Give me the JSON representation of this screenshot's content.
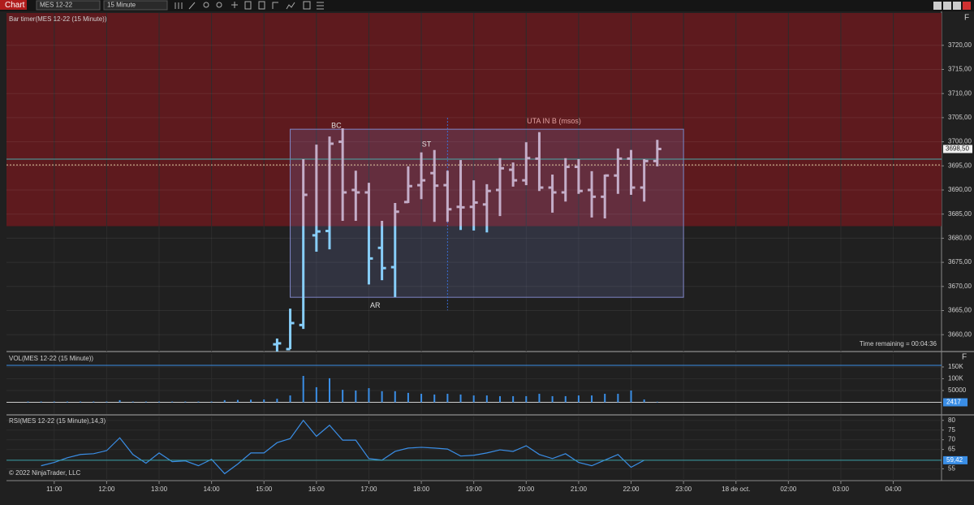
{
  "toolbar": {
    "title": "Chart",
    "instrument": "MES 12-22",
    "interval": "15 Minute"
  },
  "chart_data": [
    {
      "type": "ohlc",
      "title": "Bar timer(MES 12-22 (15 Minute))",
      "footer": "Time remaining = 00:04:36",
      "x": [
        15.25,
        15.5,
        15.75,
        16,
        16.25,
        16.5,
        16.75,
        17,
        17.25,
        17.5,
        17.75,
        18,
        18.25,
        18.5,
        18.75,
        19,
        19.25,
        19.5,
        19.75,
        20,
        20.25,
        20.5,
        20.75,
        21,
        21.25,
        21.5,
        21.75,
        22,
        22.25,
        22.5
      ],
      "open": [
        3658,
        3657,
        3662,
        3680.6,
        3681.5,
        3700,
        3690,
        3689.5,
        3678,
        3674,
        3687.5,
        3691,
        3693.5,
        3691,
        3686.5,
        3686.5,
        3687,
        3690,
        3694.2,
        3692,
        3696.5,
        3690.5,
        3689.5,
        3694.8,
        3690,
        3688.6,
        3693,
        3696.5,
        3690.5,
        3696
      ],
      "high": [
        3659.2,
        3665.4,
        3696.4,
        3699.4,
        3701.1,
        3702.8,
        3694,
        3691.5,
        3683.6,
        3687.3,
        3694.9,
        3697.8,
        3698.3,
        3694,
        3696.2,
        3692,
        3691.2,
        3696.6,
        3695.7,
        3699.9,
        3702,
        3693.2,
        3696.6,
        3696.4,
        3693.9,
        3693.2,
        3698.6,
        3698.3,
        3696.4,
        3700.4
      ],
      "low": [
        3655.5,
        3657,
        3661.2,
        3677.2,
        3677.7,
        3683.6,
        3683.6,
        3670.4,
        3671.3,
        3667.8,
        3687.3,
        3688.1,
        3683.4,
        3683.4,
        3681.7,
        3681.6,
        3681.2,
        3684.6,
        3690.7,
        3691,
        3689.8,
        3685.3,
        3687.6,
        3689.2,
        3684.3,
        3684.1,
        3689.2,
        3689,
        3687.6,
        3694.9
      ],
      "close": [
        3658.2,
        3662.4,
        3689,
        3681.4,
        3699.6,
        3689.5,
        3689.5,
        3675.8,
        3673.8,
        3685.5,
        3690.8,
        3692,
        3690.9,
        3686,
        3686.4,
        3687.4,
        3689.8,
        3694.5,
        3692,
        3696.6,
        3690.5,
        3689.5,
        3694.8,
        3689.8,
        3688.6,
        3693,
        3696.5,
        3690.5,
        3696,
        3698.5
      ],
      "color": "#87cefa",
      "zone_color": "#5e1a1e",
      "zone_bar_color": "#c4adc8",
      "zone_from": 3682.5,
      "box": {
        "x": [
          15.5,
          23.0
        ],
        "y": [
          3667.75,
          3702.6
        ]
      },
      "vline": 18.5,
      "reference_lines": [
        3696.4,
        3695.2
      ],
      "annotations": [
        {
          "text": "BC",
          "x": 16.38,
          "y": 3703.3
        },
        {
          "text": "ST",
          "x": 18.1,
          "y": 3699.4
        },
        {
          "text": "AR",
          "x": 17.12,
          "y": 3666
        },
        {
          "text": "UTA IN B (msos)",
          "x": 20.53,
          "y": 3704.2
        }
      ],
      "last_price": {
        "value": 3698.5,
        "label": "3698,50"
      },
      "xlim": [
        10.09,
        27.92
      ],
      "ylim": [
        3656.5,
        3726.7
      ],
      "yticks": [
        {
          "value": 3660,
          "label": "3660,00"
        },
        {
          "value": 3665,
          "label": "3665,00"
        },
        {
          "value": 3670,
          "label": "3670,00"
        },
        {
          "value": 3675,
          "label": "3675,00"
        },
        {
          "value": 3680,
          "label": "3680,00"
        },
        {
          "value": 3685,
          "label": "3685,00"
        },
        {
          "value": 3690,
          "label": "3690,00"
        },
        {
          "value": 3695,
          "label": "3695,00"
        },
        {
          "value": 3700,
          "label": "3700,00"
        },
        {
          "value": 3705,
          "label": "3705,00"
        },
        {
          "value": 3710,
          "label": "3710,00"
        },
        {
          "value": 3715,
          "label": "3715,00"
        },
        {
          "value": 3720,
          "label": "3720,00"
        }
      ]
    },
    {
      "type": "bar",
      "title": "VOL(MES 12-22 (15 Minute))",
      "color": "#3a8ee6",
      "x": [
        10.5,
        10.75,
        11,
        11.25,
        11.5,
        11.75,
        12,
        12.25,
        12.5,
        12.75,
        13,
        13.25,
        13.5,
        13.75,
        14,
        14.25,
        14.5,
        14.75,
        15,
        15.25,
        15.5,
        15.75,
        16,
        16.25,
        16.5,
        16.75,
        17,
        17.25,
        17.5,
        17.75,
        18,
        18.25,
        18.5,
        18.75,
        19,
        19.25,
        19.5,
        19.75,
        20,
        20.25,
        20.5,
        20.75,
        21,
        21.25,
        21.5,
        21.75,
        22,
        22.25,
        22.5
      ],
      "values": [
        3000,
        3000,
        3000,
        3000,
        3000,
        3000,
        3000,
        9000,
        3000,
        3000,
        3000,
        3000,
        3000,
        3000,
        3000,
        9000,
        10000,
        11000,
        12000,
        15000,
        29000,
        112000,
        64000,
        102000,
        53000,
        50000,
        60000,
        47000,
        47000,
        40000,
        36000,
        33000,
        36000,
        33000,
        29000,
        29000,
        26000,
        26000,
        26000,
        36000,
        26000,
        26000,
        29000,
        29000,
        36000,
        36000,
        50000,
        12000,
        2417
      ],
      "xlim": [
        10.09,
        27.92
      ],
      "ylim": [
        -50000,
        205000
      ],
      "yticks": [
        50000,
        {
          "value": 100000,
          "label": "100K"
        },
        {
          "value": 150000,
          "label": "150K"
        }
      ]
    },
    {
      "type": "line",
      "title": "RSI(MES 12-22 (15 Minute),14,3)",
      "footer": "© 2022 NinjaTrader, LLC",
      "color": "#3a8ee6",
      "x": [
        10.75,
        11,
        11.25,
        11.5,
        11.75,
        12,
        12.25,
        12.5,
        12.75,
        13,
        13.25,
        13.5,
        13.75,
        14,
        14.25,
        14.5,
        14.75,
        15,
        15.25,
        15.5,
        15.75,
        16,
        16.25,
        16.5,
        16.75,
        17,
        17.25,
        17.5,
        17.75,
        18,
        18.25,
        18.5,
        18.75,
        19,
        19.25,
        19.5,
        19.75,
        20,
        20.25,
        20.5,
        20.75,
        21,
        21.25,
        21.5,
        21.75,
        22,
        22.25
      ],
      "values": [
        56.6,
        58.3,
        60.7,
        62.4,
        62.8,
        64.4,
        71,
        62.4,
        57.9,
        63.2,
        58.7,
        59.1,
        56.6,
        59.9,
        52.5,
        57.5,
        63.2,
        63.2,
        68.5,
        70.6,
        80,
        71.8,
        77.5,
        69.8,
        69.8,
        60.3,
        59.5,
        64,
        65.7,
        66.1,
        65.7,
        65.2,
        61.6,
        62,
        63.2,
        64.8,
        64,
        66.9,
        62.4,
        60.3,
        62.8,
        58.3,
        56.6,
        59.5,
        62.4,
        55.8,
        59.42
      ],
      "last_value": {
        "value": 59.42,
        "label": "59,42"
      },
      "xlim": [
        10.09,
        27.92
      ],
      "ylim": [
        48.9,
        82
      ],
      "yticks": [
        55,
        65,
        70,
        75,
        80
      ],
      "xticks": [
        {
          "value": 11,
          "label": "11:00"
        },
        {
          "value": 12,
          "label": "12:00"
        },
        {
          "value": 13,
          "label": "13:00"
        },
        {
          "value": 14,
          "label": "14:00"
        },
        {
          "value": 15,
          "label": "15:00"
        },
        {
          "value": 16,
          "label": "16:00"
        },
        {
          "value": 17,
          "label": "17:00"
        },
        {
          "value": 18,
          "label": "18:00"
        },
        {
          "value": 19,
          "label": "19:00"
        },
        {
          "value": 20,
          "label": "20:00"
        },
        {
          "value": 21,
          "label": "21:00"
        },
        {
          "value": 22,
          "label": "22:00"
        },
        {
          "value": 23,
          "label": "23:00"
        },
        {
          "value": 24,
          "label": "18 de oct."
        },
        {
          "value": 25,
          "label": "02:00"
        },
        {
          "value": 26,
          "label": "03:00"
        },
        {
          "value": 27,
          "label": "04:00"
        }
      ]
    }
  ]
}
